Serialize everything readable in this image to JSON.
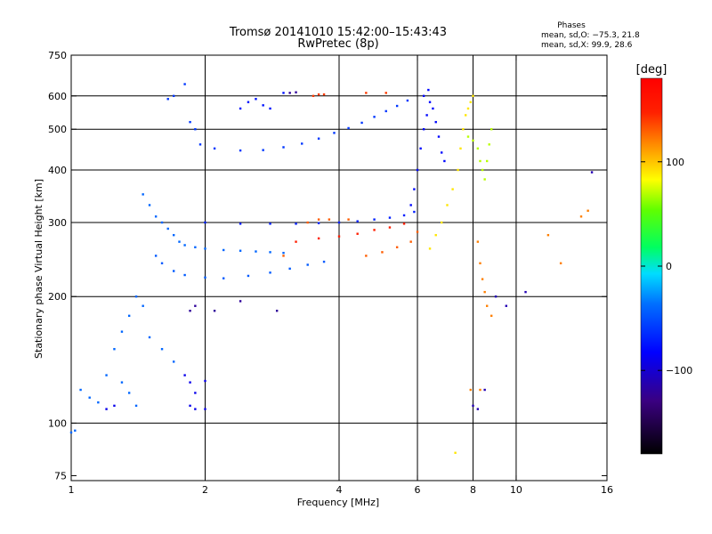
{
  "header": {
    "title_line1": "Tromsø 20141010 15:42:00–15:43:43",
    "title_line2": "RwPretec (8p)",
    "phases_title": "Phases",
    "phases_o": "mean, sd,O: −75.3, 21.8",
    "phases_x": "mean, sd,X:  99.9, 28.6"
  },
  "chart_data": {
    "type": "scatter",
    "xlabel": "Frequency [MHz]",
    "ylabel": "Stationary phase Virtual Height [km]",
    "x_scale": "log",
    "y_scale": "log",
    "xlim": [
      1,
      16
    ],
    "ylim": [
      73,
      750
    ],
    "x_ticks": [
      {
        "value": 1,
        "label": "1"
      },
      {
        "value": 2,
        "label": "2"
      },
      {
        "value": 4,
        "label": "4"
      },
      {
        "value": 6,
        "label": "6"
      },
      {
        "value": 8,
        "label": "8"
      },
      {
        "value": 10,
        "label": "10"
      },
      {
        "value": 16,
        "label": "16"
      }
    ],
    "x_grid": [
      2,
      4,
      6,
      8,
      10
    ],
    "y_ticks": [
      {
        "value": 75,
        "label": "75"
      },
      {
        "value": 100,
        "label": "100"
      },
      {
        "value": 200,
        "label": "200"
      },
      {
        "value": 300,
        "label": "300"
      },
      {
        "value": 400,
        "label": "400"
      },
      {
        "value": 500,
        "label": "500"
      },
      {
        "value": 600,
        "label": "600"
      },
      {
        "value": 750,
        "label": "750"
      }
    ],
    "y_grid": [
      100,
      200,
      300,
      400,
      500,
      600
    ],
    "grid": true,
    "colorbar": {
      "label": "[deg]",
      "range": [
        -180,
        180
      ],
      "ticks": [
        {
          "value": 100,
          "label": "100"
        },
        {
          "value": 0,
          "label": "0"
        },
        {
          "value": -100,
          "label": "−100"
        }
      ]
    },
    "series": [
      {
        "phase": -40,
        "points": [
          [
            1.0,
            95
          ],
          [
            1.02,
            96
          ],
          [
            1.05,
            120
          ],
          [
            1.1,
            115
          ],
          [
            1.15,
            112
          ],
          [
            1.25,
            150
          ],
          [
            1.3,
            165
          ],
          [
            1.35,
            180
          ],
          [
            1.4,
            200
          ],
          [
            1.45,
            190
          ],
          [
            1.5,
            160
          ],
          [
            1.6,
            150
          ],
          [
            1.7,
            140
          ],
          [
            1.3,
            125
          ],
          [
            1.2,
            130
          ],
          [
            1.35,
            118
          ],
          [
            1.4,
            110
          ]
        ]
      },
      {
        "phase": -40,
        "points": [
          [
            1.45,
            350
          ],
          [
            1.5,
            330
          ],
          [
            1.55,
            310
          ],
          [
            1.6,
            300
          ],
          [
            1.65,
            290
          ],
          [
            1.7,
            280
          ],
          [
            1.75,
            270
          ],
          [
            1.8,
            265
          ],
          [
            1.9,
            262
          ],
          [
            2.0,
            260
          ],
          [
            2.2,
            258
          ],
          [
            2.4,
            257
          ],
          [
            2.6,
            256
          ],
          [
            2.8,
            255
          ],
          [
            3.0,
            254
          ]
        ]
      },
      {
        "phase": -45,
        "points": [
          [
            1.55,
            250
          ],
          [
            1.6,
            240
          ],
          [
            1.7,
            230
          ],
          [
            1.8,
            225
          ],
          [
            2.0,
            222
          ],
          [
            2.2,
            221
          ],
          [
            2.5,
            224
          ],
          [
            2.8,
            228
          ],
          [
            3.1,
            233
          ],
          [
            3.4,
            238
          ],
          [
            3.7,
            242
          ]
        ]
      },
      {
        "phase": -60,
        "points": [
          [
            1.65,
            590
          ],
          [
            1.7,
            600
          ],
          [
            1.8,
            640
          ],
          [
            1.85,
            520
          ],
          [
            1.9,
            500
          ],
          [
            1.95,
            460
          ],
          [
            2.1,
            450
          ],
          [
            2.4,
            445
          ],
          [
            2.7,
            446
          ],
          [
            3.0,
            453
          ],
          [
            3.3,
            462
          ],
          [
            3.6,
            475
          ],
          [
            3.9,
            490
          ],
          [
            4.2,
            503
          ],
          [
            4.5,
            518
          ],
          [
            4.8,
            535
          ],
          [
            5.1,
            552
          ],
          [
            5.4,
            568
          ],
          [
            5.7,
            585
          ]
        ]
      },
      {
        "phase": -70,
        "points": [
          [
            2.0,
            300
          ],
          [
            2.4,
            298
          ],
          [
            2.8,
            298
          ],
          [
            3.2,
            298
          ],
          [
            3.6,
            299
          ],
          [
            4.0,
            300
          ],
          [
            4.4,
            302
          ],
          [
            4.8,
            305
          ],
          [
            5.2,
            308
          ],
          [
            5.6,
            312
          ],
          [
            5.9,
            318
          ]
        ]
      },
      {
        "phase": -80,
        "points": [
          [
            5.8,
            330
          ],
          [
            5.9,
            360
          ],
          [
            6.0,
            400
          ],
          [
            6.1,
            450
          ],
          [
            6.2,
            500
          ],
          [
            6.3,
            540
          ],
          [
            6.4,
            580
          ],
          [
            6.5,
            560
          ],
          [
            6.6,
            520
          ],
          [
            6.7,
            480
          ],
          [
            6.8,
            440
          ],
          [
            6.9,
            420
          ],
          [
            6.2,
            600
          ],
          [
            6.35,
            620
          ]
        ]
      },
      {
        "phase": -75,
        "points": [
          [
            2.4,
            560
          ],
          [
            2.5,
            580
          ],
          [
            2.6,
            590
          ],
          [
            2.7,
            570
          ],
          [
            2.8,
            560
          ],
          [
            3.0,
            610
          ]
        ]
      },
      {
        "phase": -90,
        "points": [
          [
            1.8,
            130
          ],
          [
            1.85,
            125
          ],
          [
            1.9,
            118
          ],
          [
            1.85,
            110
          ],
          [
            2.0,
            108
          ],
          [
            1.9,
            108
          ],
          [
            2.0,
            126
          ],
          [
            1.2,
            108
          ],
          [
            1.25,
            110
          ]
        ]
      },
      {
        "phase": -120,
        "points": [
          [
            1.85,
            185
          ],
          [
            1.9,
            190
          ],
          [
            2.1,
            185
          ],
          [
            2.4,
            195
          ],
          [
            2.9,
            185
          ],
          [
            3.1,
            610
          ],
          [
            3.2,
            612
          ]
        ]
      },
      {
        "phase": 130,
        "points": [
          [
            3.0,
            250
          ],
          [
            3.4,
            300
          ],
          [
            3.8,
            305
          ],
          [
            4.2,
            305
          ],
          [
            4.6,
            250
          ],
          [
            5.0,
            255
          ],
          [
            5.4,
            262
          ],
          [
            5.8,
            270
          ],
          [
            6.0,
            285
          ],
          [
            3.6,
            305
          ]
        ]
      },
      {
        "phase": 150,
        "points": [
          [
            3.2,
            270
          ],
          [
            3.6,
            275
          ],
          [
            4.0,
            278
          ],
          [
            4.4,
            282
          ],
          [
            4.8,
            288
          ],
          [
            5.2,
            292
          ],
          [
            5.6,
            298
          ]
        ]
      },
      {
        "phase": 90,
        "points": [
          [
            6.4,
            260
          ],
          [
            6.6,
            280
          ],
          [
            6.8,
            300
          ],
          [
            7.0,
            330
          ],
          [
            7.2,
            360
          ],
          [
            7.4,
            400
          ],
          [
            7.5,
            450
          ],
          [
            7.6,
            500
          ],
          [
            7.7,
            540
          ],
          [
            7.8,
            560
          ],
          [
            8.0,
            600
          ],
          [
            7.9,
            580
          ],
          [
            7.3,
            85
          ]
        ]
      },
      {
        "phase": 70,
        "points": [
          [
            7.8,
            480
          ],
          [
            8.0,
            470
          ],
          [
            8.2,
            450
          ],
          [
            8.3,
            420
          ],
          [
            8.4,
            400
          ],
          [
            8.5,
            380
          ],
          [
            8.6,
            420
          ],
          [
            8.7,
            460
          ],
          [
            8.8,
            500
          ]
        ]
      },
      {
        "phase": 120,
        "points": [
          [
            8.2,
            270
          ],
          [
            8.3,
            240
          ],
          [
            8.4,
            220
          ],
          [
            8.5,
            205
          ],
          [
            8.6,
            190
          ],
          [
            8.8,
            180
          ],
          [
            7.9,
            120
          ],
          [
            8.3,
            120
          ],
          [
            11.8,
            280
          ],
          [
            12.6,
            240
          ],
          [
            14.0,
            310
          ],
          [
            14.5,
            320
          ]
        ]
      },
      {
        "phase": -110,
        "points": [
          [
            8.0,
            110
          ],
          [
            8.2,
            108
          ],
          [
            8.5,
            120
          ],
          [
            9.0,
            200
          ],
          [
            9.5,
            190
          ],
          [
            10.5,
            205
          ],
          [
            14.8,
            395
          ]
        ]
      },
      {
        "phase": 140,
        "points": [
          [
            3.6,
            605
          ],
          [
            3.7,
            605
          ],
          [
            4.6,
            610
          ],
          [
            5.1,
            610
          ],
          [
            3.5,
            600
          ]
        ]
      }
    ]
  }
}
